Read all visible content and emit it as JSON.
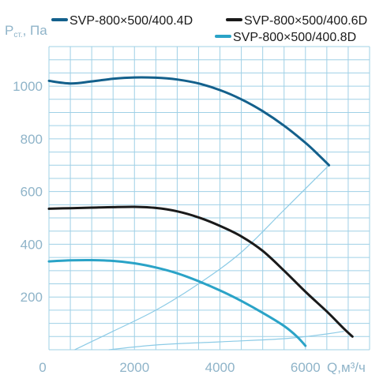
{
  "chart_data": {
    "type": "line",
    "ylabel": "P",
    "ylabel_sub": "ст.",
    "ylabel_unit": ", Па",
    "xlabel": "Q,м³/ч",
    "xlim": [
      0,
      7500
    ],
    "ylim": [
      0,
      1150
    ],
    "grid": true,
    "x_ticks": [
      0,
      2000,
      4000,
      6000
    ],
    "x_tick_labels": [
      "0",
      "2000",
      "4000",
      "6000"
    ],
    "y_ticks": [
      200,
      400,
      600,
      800,
      1000
    ],
    "y_tick_labels": [
      "200",
      "400",
      "600",
      "800",
      "1000"
    ],
    "legend_position": "top",
    "series": [
      {
        "name": "SVP-800×500/400.4D",
        "color": "#13608c",
        "points": [
          [
            0,
            1020
          ],
          [
            500,
            1010
          ],
          [
            1000,
            1018
          ],
          [
            1500,
            1028
          ],
          [
            2000,
            1033
          ],
          [
            2500,
            1032
          ],
          [
            3000,
            1025
          ],
          [
            3500,
            1010
          ],
          [
            4000,
            985
          ],
          [
            4500,
            950
          ],
          [
            5000,
            905
          ],
          [
            5500,
            850
          ],
          [
            6000,
            785
          ],
          [
            6300,
            740
          ],
          [
            6550,
            700
          ]
        ]
      },
      {
        "name": "SVP-800×500/400.6D",
        "color": "#1a1a1a",
        "points": [
          [
            0,
            535
          ],
          [
            500,
            537
          ],
          [
            1000,
            539
          ],
          [
            1500,
            541
          ],
          [
            2000,
            542
          ],
          [
            2500,
            538
          ],
          [
            3000,
            525
          ],
          [
            3500,
            502
          ],
          [
            4000,
            470
          ],
          [
            4500,
            430
          ],
          [
            5000,
            375
          ],
          [
            5500,
            300
          ],
          [
            6000,
            220
          ],
          [
            6500,
            145
          ],
          [
            6900,
            80
          ],
          [
            7100,
            50
          ]
        ]
      },
      {
        "name": "SVP-800×500/400.8D",
        "color": "#2aa3c7",
        "points": [
          [
            0,
            335
          ],
          [
            500,
            339
          ],
          [
            1000,
            340
          ],
          [
            1500,
            337
          ],
          [
            2000,
            328
          ],
          [
            2500,
            312
          ],
          [
            3000,
            290
          ],
          [
            3500,
            260
          ],
          [
            4000,
            225
          ],
          [
            4500,
            185
          ],
          [
            5000,
            140
          ],
          [
            5500,
            90
          ],
          [
            5800,
            50
          ],
          [
            6000,
            15
          ]
        ]
      }
    ],
    "system_curves": [
      {
        "color": "#8ccbe6",
        "points": [
          [
            600,
            0
          ],
          [
            1500,
            70
          ],
          [
            2500,
            150
          ],
          [
            3500,
            250
          ],
          [
            4500,
            370
          ],
          [
            5500,
            530
          ],
          [
            6550,
            700
          ]
        ]
      },
      {
        "color": "#8ccbe6",
        "points": [
          [
            1400,
            0
          ],
          [
            2500,
            18
          ],
          [
            4000,
            30
          ],
          [
            5500,
            42
          ],
          [
            6500,
            60
          ],
          [
            6900,
            70
          ]
        ]
      }
    ]
  }
}
